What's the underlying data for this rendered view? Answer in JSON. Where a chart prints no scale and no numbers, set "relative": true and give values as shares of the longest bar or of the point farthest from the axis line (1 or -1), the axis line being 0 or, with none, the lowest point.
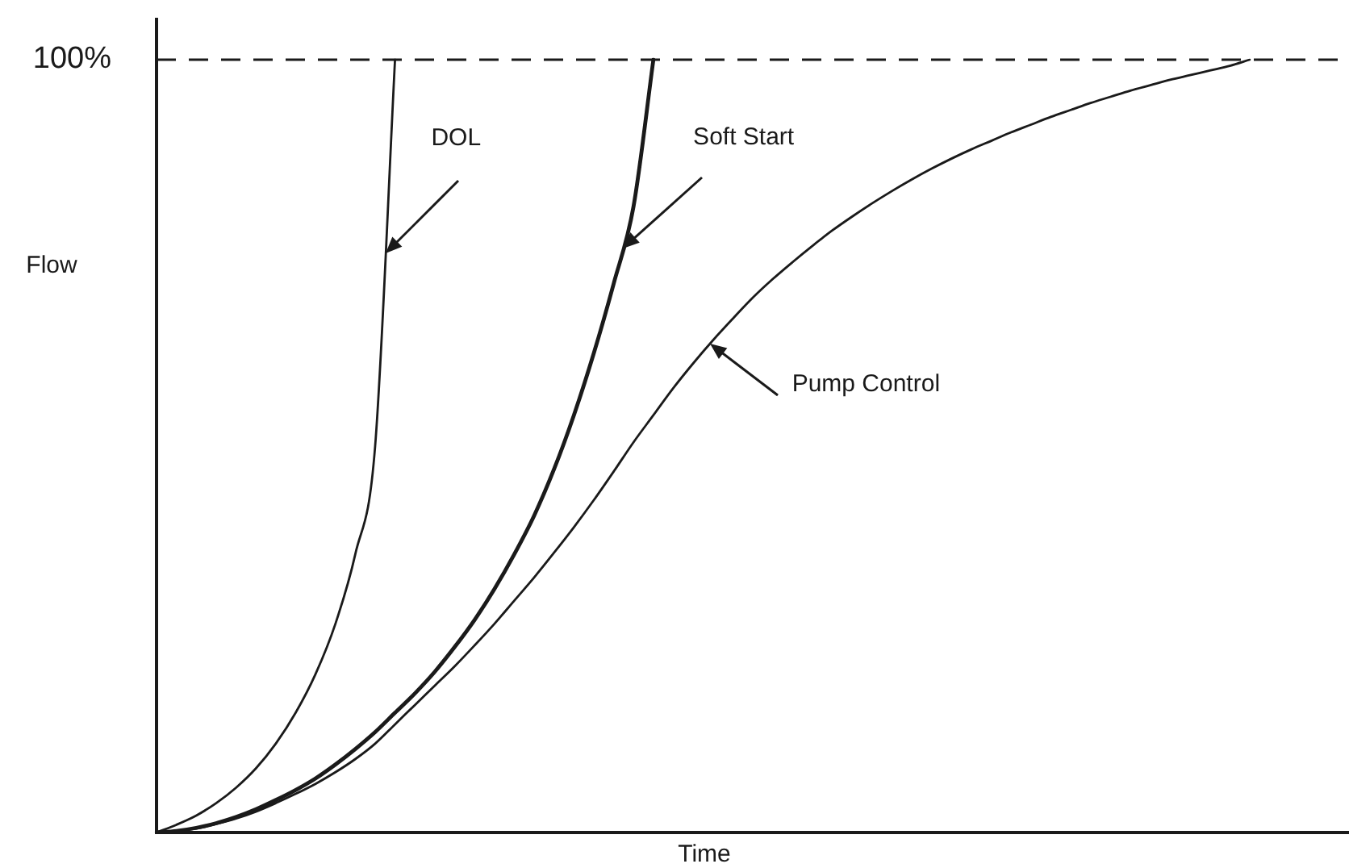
{
  "chart_data": {
    "type": "line",
    "relative": true,
    "xlabel": "Time",
    "ylabel": "Flow",
    "marker": "none",
    "line_style": "solid",
    "categories": [
      null,
      null,
      null,
      null,
      null,
      null,
      null,
      null,
      null,
      null,
      null,
      null,
      null,
      null,
      null,
      null,
      null,
      null,
      null,
      null,
      null,
      null,
      null,
      null,
      null,
      null,
      null,
      null,
      null,
      null,
      null,
      null,
      null,
      null,
      null,
      null,
      null,
      null,
      null,
      null,
      null,
      null,
      null,
      null,
      null,
      null,
      null,
      null,
      null,
      null,
      null,
      null,
      null,
      null,
      null,
      null,
      null,
      null,
      null,
      null,
      null
    ],
    "series": [
      {
        "name": "DOL",
        "color": "#1a1a1a",
        "values": [
          0,
          0.01,
          0.022,
          0.038,
          0.058,
          0.083,
          0.115,
          0.155,
          0.205,
          0.27,
          0.36,
          0.5,
          1,
          null,
          null,
          null,
          null,
          null,
          null,
          null,
          null,
          null,
          null,
          null,
          null,
          null,
          null,
          null,
          null,
          null,
          null,
          null,
          null,
          null,
          null,
          null,
          null,
          null,
          null,
          null,
          null,
          null,
          null,
          null,
          null,
          null,
          null,
          null,
          null,
          null,
          null,
          null,
          null,
          null,
          null,
          null,
          null,
          null,
          null,
          null,
          null
        ]
      },
      {
        "name": "Soft Start",
        "color": "#1a1a1a",
        "values": [
          0,
          0.002,
          0.006,
          0.012,
          0.02,
          0.03,
          0.042,
          0.055,
          0.07,
          0.088,
          0.108,
          0.13,
          0.155,
          0.18,
          0.208,
          0.24,
          0.275,
          0.315,
          0.36,
          0.41,
          0.47,
          0.54,
          0.62,
          0.71,
          0.81,
          1,
          null,
          null,
          null,
          null,
          null,
          null,
          null,
          null,
          null,
          null,
          null,
          null,
          null,
          null,
          null,
          null,
          null,
          null,
          null,
          null,
          null,
          null,
          null,
          null,
          null,
          null,
          null,
          null,
          null,
          null,
          null,
          null,
          null,
          null,
          null
        ]
      },
      {
        "name": "Pump Control",
        "color": "#1a1a1a",
        "values": [
          0,
          0.002,
          0.005,
          0.011,
          0.018,
          0.027,
          0.038,
          0.05,
          0.063,
          0.078,
          0.095,
          0.115,
          0.14,
          0.165,
          0.19,
          0.215,
          0.242,
          0.27,
          0.3,
          0.33,
          0.362,
          0.395,
          0.43,
          0.467,
          0.505,
          0.54,
          0.575,
          0.607,
          0.637,
          0.665,
          0.692,
          0.716,
          0.738,
          0.759,
          0.779,
          0.797,
          0.814,
          0.83,
          0.845,
          0.859,
          0.872,
          0.884,
          0.895,
          0.906,
          0.916,
          0.926,
          0.935,
          0.944,
          0.952,
          0.96,
          0.967,
          0.974,
          0.98,
          0.986,
          0.992,
          1,
          null,
          null,
          null,
          null,
          null
        ]
      }
    ],
    "ref_lines": [
      {
        "axis": "y",
        "value": 1,
        "label": "100%",
        "line_style": "dashed",
        "color": "#1a1a1a"
      }
    ]
  }
}
